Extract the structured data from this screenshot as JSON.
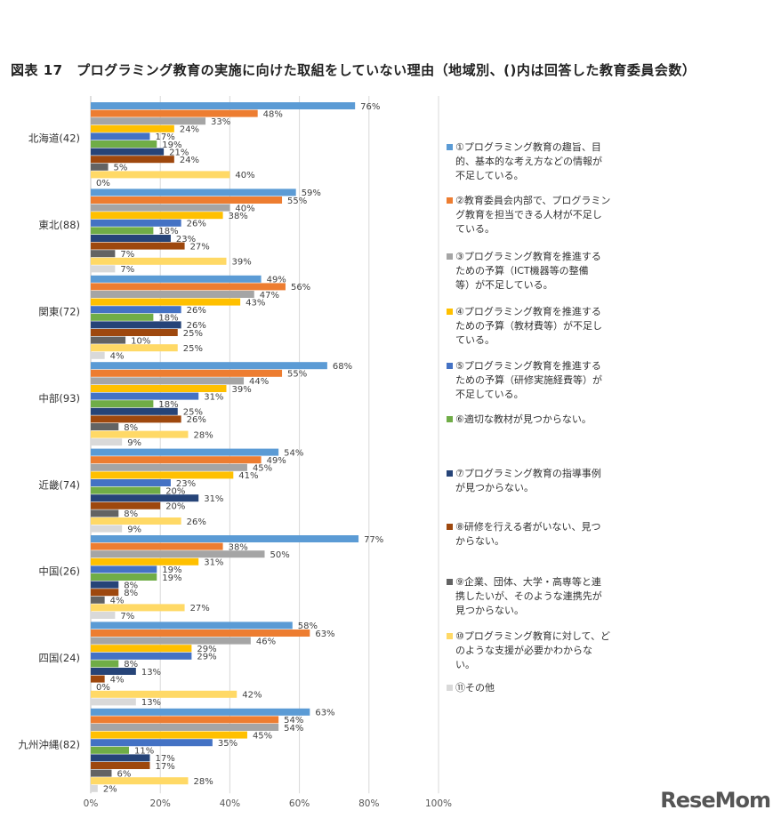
{
  "chart_data": {
    "type": "bar",
    "orientation": "horizontal",
    "title": "図表 17　プログラミング教育の実施に向けた取組をしていない理由（地域別、()内は回答した教育委員会数）",
    "categories": [
      "北海道(42)",
      "東北(88)",
      "関東(72)",
      "中部(93)",
      "近畿(74)",
      "中国(26)",
      "四国(24)",
      "九州沖縄(82)"
    ],
    "xlim": [
      0,
      100
    ],
    "x_ticks": [
      "0%",
      "20%",
      "40%",
      "60%",
      "80%",
      "100%"
    ],
    "grid": true,
    "legend_position": "right",
    "series": [
      {
        "name": "①プログラミング教育の趣旨、目的、基本的な考え方などの情報が不足している。",
        "color": "#5b9bd5",
        "values": [
          76,
          59,
          49,
          68,
          54,
          77,
          58,
          63
        ]
      },
      {
        "name": "②教育委員会内部で、プログラミング教育を担当できる人材が不足している。",
        "color": "#ed7d31",
        "values": [
          48,
          55,
          56,
          55,
          49,
          38,
          63,
          54
        ]
      },
      {
        "name": "③プログラミング教育を推進するための予算（ICT機器等の整備等）が不足している。",
        "color": "#a5a5a5",
        "values": [
          33,
          40,
          47,
          44,
          45,
          50,
          46,
          54
        ]
      },
      {
        "name": "④プログラミング教育を推進するための予算（教材費等）が不足している。",
        "color": "#ffc000",
        "values": [
          24,
          38,
          43,
          39,
          41,
          31,
          29,
          45
        ]
      },
      {
        "name": "⑤プログラミング教育を推進するための予算（研修実施経費等）が不足している。",
        "color": "#4472c4",
        "values": [
          17,
          26,
          26,
          31,
          23,
          19,
          29,
          35
        ]
      },
      {
        "name": "⑥適切な教材が見つからない。",
        "color": "#70ad47",
        "values": [
          19,
          18,
          18,
          18,
          20,
          19,
          8,
          11
        ]
      },
      {
        "name": "⑦プログラミング教育の指導事例が見つからない。",
        "color": "#264478",
        "values": [
          21,
          23,
          26,
          25,
          31,
          8,
          13,
          17
        ]
      },
      {
        "name": "⑧研修を行える者がいない、見つからない。",
        "color": "#9e480e",
        "values": [
          24,
          27,
          25,
          26,
          20,
          8,
          4,
          17
        ]
      },
      {
        "name": "⑨企業、団体、大学・高専等と連携したいが、そのような連携先が見つからない。",
        "color": "#636363",
        "values": [
          5,
          7,
          10,
          8,
          8,
          4,
          0,
          6
        ]
      },
      {
        "name": "⑩プログラミング教育に対して、どのような支援が必要かわからない。",
        "color": "#ffd966",
        "values": [
          40,
          39,
          25,
          28,
          26,
          27,
          42,
          28
        ]
      },
      {
        "name": "⑪その他",
        "color": "#d9d9d9",
        "values": [
          0,
          7,
          4,
          9,
          9,
          7,
          13,
          2
        ]
      }
    ]
  },
  "legend_labels": [
    "①プログラミング教育の趣旨、目\n的、基本的な考え方などの情報が\n不足している。",
    "②教育委員会内部で、プログラミン\nグ教育を担当できる人材が不足し\nている。",
    "③プログラミング教育を推進する\nための予算（ICT機器等の整備\n等）が不足している。",
    "④プログラミング教育を推進する\nための予算（教材費等）が不足し\nている。",
    "⑤プログラミング教育を推進する\nための予算（研修実施経費等）が\n不足している。",
    "⑥適切な教材が見つからない。",
    "⑦プログラミング教育の指導事例\nが見つからない。",
    "⑧研修を行える者がいない、見つ\nからない。",
    "⑨企業、団体、大学・高専等と連\n携したいが、そのような連携先が\n見つからない。",
    "⑩プログラミング教育に対して、ど\nのような支援が必要かわからな\nい。",
    "⑪その他"
  ],
  "watermark": "ReseMom"
}
